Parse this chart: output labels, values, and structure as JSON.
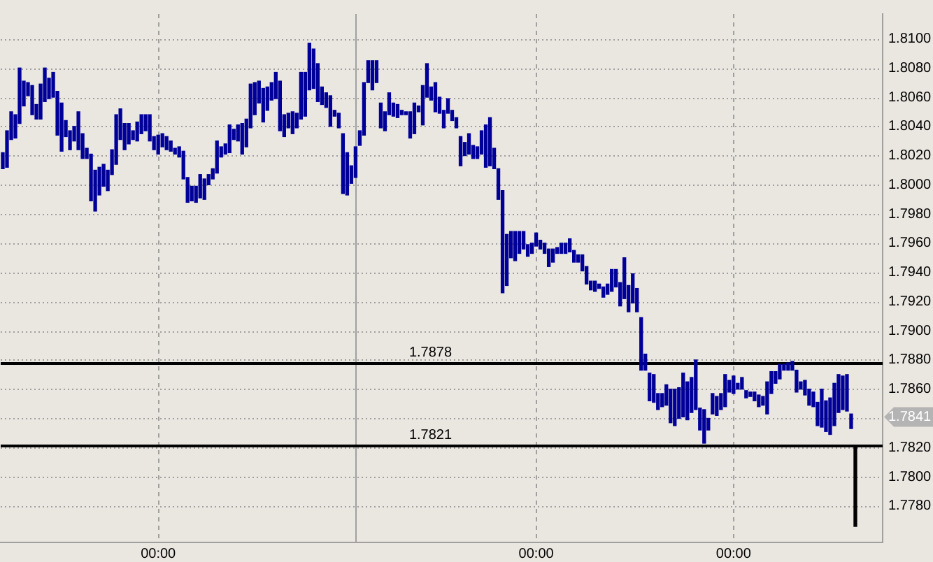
{
  "chart_data": {
    "type": "bar",
    "categories": [
      null,
      null,
      null,
      null,
      null,
      null,
      null,
      null,
      null,
      null,
      null,
      null,
      null,
      null,
      null,
      null,
      null,
      null,
      null,
      null,
      null,
      null,
      null,
      null,
      null,
      null,
      null,
      null,
      null,
      null,
      null,
      null,
      null,
      null,
      null,
      null,
      null,
      "00:00",
      null,
      null,
      null,
      null,
      null,
      null,
      null,
      null,
      null,
      null,
      null,
      null,
      null,
      null,
      null,
      null,
      null,
      null,
      null,
      null,
      null,
      null,
      null,
      null,
      null,
      null,
      null,
      null,
      null,
      null,
      null,
      null,
      null,
      null,
      null,
      null,
      null,
      null,
      null,
      null,
      null,
      null,
      null,
      null,
      null,
      null,
      null,
      null,
      null,
      null,
      null,
      null,
      null,
      null,
      null,
      null,
      null,
      null,
      null,
      null,
      null,
      null,
      null,
      null,
      null,
      null,
      null,
      null,
      null,
      null,
      null,
      null,
      null,
      null,
      null,
      null,
      null,
      null,
      null,
      null,
      null,
      null,
      null,
      null,
      null,
      null,
      null,
      null,
      null,
      "00:00",
      null,
      null,
      null,
      null,
      null,
      null,
      null,
      null,
      null,
      null,
      null,
      null,
      null,
      null,
      null,
      null,
      null,
      null,
      null,
      null,
      null,
      null,
      null,
      null,
      null,
      null,
      null,
      null,
      null,
      null,
      null,
      null,
      null,
      null,
      null,
      null,
      null,
      null,
      null,
      null,
      null,
      null,
      null,
      null,
      null,
      null,
      "00:00",
      null,
      null,
      null,
      null,
      null,
      null,
      null,
      null,
      null,
      null,
      null,
      null,
      null,
      null,
      null,
      null,
      null,
      null,
      null,
      null,
      null,
      null,
      null,
      null,
      null,
      null,
      null,
      null,
      null,
      null,
      null,
      null,
      null,
      null,
      null
    ],
    "series": [
      {
        "color": "#000099",
        "base": [
          1.8011,
          1.8012,
          1.8031,
          1.8032,
          1.8042,
          1.8054,
          1.8061,
          1.8048,
          1.8045,
          1.8045,
          1.8057,
          1.8059,
          1.806,
          1.8034,
          1.8023,
          1.8033,
          1.8024,
          1.803,
          1.8024,
          1.8018,
          1.8018,
          1.7989,
          1.7982,
          1.7993,
          1.7999,
          1.7996,
          1.8007,
          1.8014,
          1.8031,
          1.8024,
          1.8028,
          1.8031,
          1.803,
          1.8035,
          1.8037,
          1.803,
          1.8024,
          1.8021,
          1.8026,
          1.8024,
          1.8023,
          1.8021,
          1.8019,
          1.8004,
          1.7988,
          1.7989,
          1.7988,
          1.7991,
          1.799,
          1.8,
          1.8004,
          1.8008,
          1.8019,
          1.8021,
          1.8022,
          1.8031,
          1.803,
          1.8021,
          1.8026,
          1.8039,
          1.8048,
          1.8056,
          1.8043,
          1.8051,
          1.8058,
          1.8059,
          1.8037,
          1.8033,
          1.8039,
          1.8035,
          1.8039,
          1.8045,
          1.8047,
          1.8065,
          1.8066,
          1.8057,
          1.8055,
          1.8053,
          1.804,
          1.8047,
          1.8039,
          1.7994,
          1.7993,
          1.8001,
          1.8005,
          1.8027,
          1.8034,
          1.807,
          1.8065,
          1.807,
          1.8039,
          1.8037,
          1.8048,
          1.8047,
          1.8046,
          1.8048,
          1.8048,
          1.8032,
          1.8035,
          1.805,
          1.8041,
          1.806,
          1.8058,
          1.805,
          1.8049,
          1.8039,
          1.8049,
          1.8044,
          1.8039,
          1.8013,
          1.802,
          1.8021,
          1.8018,
          1.8018,
          1.8021,
          1.8012,
          1.8013,
          1.8011,
          1.799,
          1.7926,
          1.7931,
          1.795,
          1.7948,
          1.7953,
          1.7956,
          1.7951,
          1.7953,
          1.7958,
          1.7956,
          1.7953,
          1.7944,
          1.7947,
          1.7953,
          1.7953,
          1.7953,
          1.7954,
          1.7947,
          1.7947,
          1.7941,
          1.7932,
          1.7928,
          1.7927,
          1.7929,
          1.7923,
          1.7925,
          1.7927,
          1.793,
          1.7917,
          1.7922,
          1.7913,
          1.7919,
          1.7913,
          1.7873,
          1.7873,
          1.7852,
          1.7851,
          1.7846,
          1.7848,
          1.7849,
          1.7837,
          1.7835,
          1.784,
          1.7841,
          1.7839,
          1.7844,
          1.7846,
          1.7832,
          1.7823,
          1.7832,
          1.7843,
          1.7842,
          1.7846,
          1.7848,
          1.7858,
          1.7857,
          1.786,
          1.786,
          1.7854,
          1.7855,
          1.7852,
          1.7848,
          1.7849,
          1.7843,
          1.7857,
          1.7864,
          1.7867,
          1.7873,
          1.7873,
          1.7873,
          1.7858,
          1.786,
          1.7856,
          1.7849,
          1.7848,
          1.7835,
          1.7834,
          1.7831,
          1.7829,
          1.7835,
          1.7844,
          1.7846,
          1.7845,
          1.7833,
          null,
          null,
          null,
          null,
          null,
          null,
          null
        ],
        "values": [
          0.0011,
          0.0025,
          0.0019,
          0.0016,
          0.0038,
          0.0017,
          0.0009,
          0.002,
          0.001,
          0.0024,
          0.0023,
          0.0014,
          0.0017,
          0.003,
          0.0033,
          0.0011,
          0.0013,
          0.001,
          0.0026,
          0.0017,
          0.0007,
          0.0032,
          0.0028,
          0.0019,
          0.0015,
          0.0014,
          0.0017,
          0.0034,
          0.0021,
          0.0018,
          0.0014,
          0.0006,
          0.0013,
          0.0013,
          0.0011,
          0.0018,
          0.0009,
          0.0013,
          0.0009,
          0.0009,
          0.0007,
          0.0004,
          0.0007,
          0.0019,
          0.0017,
          0.001,
          0.0011,
          0.0016,
          0.0014,
          0.0007,
          0.0007,
          0.0022,
          0.0007,
          0.0007,
          0.0019,
          0.0007,
          0.0011,
          0.0021,
          0.0019,
          0.003,
          0.0022,
          0.0015,
          0.0023,
          0.0016,
          0.0012,
          0.0018,
          0.0034,
          0.0015,
          0.001,
          0.0015,
          0.001,
          0.0032,
          0.003,
          0.0032,
          0.0027,
          0.0026,
          0.0012,
          0.001,
          0.0021,
          0.0004,
          0.001,
          0.0041,
          0.0029,
          0.0012,
          0.0021,
          0.001,
          0.0036,
          0.0015,
          0.002,
          0.0015,
          0.0017,
          0.0013,
          0.0015,
          0.0009,
          0.0009,
          0.0003,
          0.0002,
          0.0018,
          0.0021,
          0.0004,
          0.0027,
          0.0023,
          0.0009,
          0.002,
          0.0011,
          0.0012,
          0.001,
          0.0007,
          0.0007,
          0.002,
          0.0009,
          0.0014,
          0.0009,
          0.0008,
          0.0016,
          0.0029,
          0.0033,
          0.0014,
          0.0021,
          0.007,
          0.0035,
          0.0018,
          0.002,
          0.0015,
          0.0012,
          0.0008,
          0.0007,
          0.0009,
          0.0006,
          0.0007,
          0.0012,
          0.0009,
          0.0004,
          0.0007,
          0.0007,
          0.0009,
          0.0008,
          0.0005,
          0.0011,
          0.0012,
          0.0006,
          0.0007,
          0.0003,
          0.0007,
          0.0007,
          0.0015,
          0.0012,
          0.0016,
          0.0028,
          0.0018,
          0.002,
          0.0016,
          0.0036,
          0.0011,
          0.0019,
          0.0019,
          0.0011,
          0.0009,
          0.0014,
          0.0023,
          0.0025,
          0.0021,
          0.003,
          0.0026,
          0.0024,
          0.0034,
          0.0015,
          0.0023,
          0.0008,
          0.0014,
          0.0013,
          0.0011,
          0.0022,
          0.0008,
          0.0012,
          0.0004,
          0.0008,
          0.0005,
          0.0003,
          0.0006,
          0.0008,
          0.0006,
          0.0022,
          0.0015,
          0.0008,
          0.001,
          0.0004,
          0.0005,
          0.0006,
          0.0015,
          0.0005,
          0.001,
          0.0011,
          0.001,
          0.0016,
          0.0026,
          0.0021,
          0.0025,
          0.0029,
          0.0026,
          0.0023,
          0.0025,
          0.001,
          null,
          null,
          null,
          null,
          null,
          null,
          null
        ]
      },
      {
        "color": "#000000",
        "base": [
          null,
          null,
          null,
          null,
          null,
          null,
          null,
          null,
          null,
          null,
          null,
          null,
          null,
          null,
          null,
          null,
          null,
          null,
          null,
          null,
          null,
          null,
          null,
          null,
          null,
          null,
          null,
          null,
          null,
          null,
          null,
          null,
          null,
          null,
          null,
          null,
          null,
          null,
          null,
          null,
          null,
          null,
          null,
          null,
          null,
          null,
          null,
          null,
          null,
          null,
          null,
          null,
          null,
          null,
          null,
          null,
          null,
          null,
          null,
          null,
          null,
          null,
          null,
          null,
          null,
          null,
          null,
          null,
          null,
          null,
          null,
          null,
          null,
          null,
          null,
          null,
          null,
          null,
          null,
          null,
          null,
          null,
          null,
          null,
          null,
          null,
          null,
          null,
          null,
          null,
          null,
          null,
          null,
          null,
          null,
          null,
          null,
          null,
          null,
          null,
          null,
          null,
          null,
          null,
          null,
          null,
          null,
          null,
          null,
          null,
          null,
          null,
          null,
          null,
          null,
          null,
          null,
          null,
          null,
          null,
          null,
          null,
          null,
          null,
          null,
          null,
          null,
          null,
          null,
          null,
          null,
          null,
          null,
          null,
          null,
          null,
          null,
          null,
          null,
          null,
          null,
          null,
          null,
          null,
          null,
          null,
          null,
          null,
          null,
          null,
          null,
          null,
          null,
          null,
          null,
          null,
          null,
          null,
          null,
          null,
          null,
          null,
          null,
          null,
          null,
          null,
          null,
          null,
          null,
          null,
          null,
          null,
          null,
          null,
          null,
          null,
          null,
          null,
          null,
          null,
          null,
          null,
          null,
          null,
          null,
          null,
          null,
          null,
          null,
          null,
          null,
          null,
          null,
          null,
          null,
          null,
          null,
          null,
          null,
          null,
          null,
          null,
          null,
          1.7766,
          null,
          null,
          null,
          null,
          null,
          null
        ],
        "values": [
          null,
          null,
          null,
          null,
          null,
          null,
          null,
          null,
          null,
          null,
          null,
          null,
          null,
          null,
          null,
          null,
          null,
          null,
          null,
          null,
          null,
          null,
          null,
          null,
          null,
          null,
          null,
          null,
          null,
          null,
          null,
          null,
          null,
          null,
          null,
          null,
          null,
          null,
          null,
          null,
          null,
          null,
          null,
          null,
          null,
          null,
          null,
          null,
          null,
          null,
          null,
          null,
          null,
          null,
          null,
          null,
          null,
          null,
          null,
          null,
          null,
          null,
          null,
          null,
          null,
          null,
          null,
          null,
          null,
          null,
          null,
          null,
          null,
          null,
          null,
          null,
          null,
          null,
          null,
          null,
          null,
          null,
          null,
          null,
          null,
          null,
          null,
          null,
          null,
          null,
          null,
          null,
          null,
          null,
          null,
          null,
          null,
          null,
          null,
          null,
          null,
          null,
          null,
          null,
          null,
          null,
          null,
          null,
          null,
          null,
          null,
          null,
          null,
          null,
          null,
          null,
          null,
          null,
          null,
          null,
          null,
          null,
          null,
          null,
          null,
          null,
          null,
          null,
          null,
          null,
          null,
          null,
          null,
          null,
          null,
          null,
          null,
          null,
          null,
          null,
          null,
          null,
          null,
          null,
          null,
          null,
          null,
          null,
          null,
          null,
          null,
          null,
          null,
          null,
          null,
          null,
          null,
          null,
          null,
          null,
          null,
          null,
          null,
          null,
          null,
          null,
          null,
          null,
          null,
          null,
          null,
          null,
          null,
          null,
          null,
          null,
          null,
          null,
          null,
          null,
          null,
          null,
          null,
          null,
          null,
          null,
          null,
          null,
          null,
          null,
          null,
          null,
          null,
          null,
          null,
          null,
          null,
          null,
          null,
          null,
          null,
          null,
          null,
          0.0055,
          null,
          null,
          null,
          null,
          null,
          null
        ]
      }
    ],
    "ylim": [
      1.7755,
      1.8117
    ],
    "yticks": [
      {
        "value": 1.778,
        "label": "1.7780"
      },
      {
        "value": 1.78,
        "label": "1.7800"
      },
      {
        "value": 1.782,
        "label": "1.7820"
      },
      {
        "value": 1.784,
        "label": null
      },
      {
        "value": 1.786,
        "label": "1.7860"
      },
      {
        "value": 1.788,
        "label": "1.7880"
      },
      {
        "value": 1.79,
        "label": "1.7900"
      },
      {
        "value": 1.792,
        "label": "1.7920"
      },
      {
        "value": 1.794,
        "label": "1.7940"
      },
      {
        "value": 1.796,
        "label": "1.7960"
      },
      {
        "value": 1.798,
        "label": "1.7980"
      },
      {
        "value": 1.8,
        "label": "1.8000"
      },
      {
        "value": 1.802,
        "label": "1.8020"
      },
      {
        "value": 1.804,
        "label": "1.8040"
      },
      {
        "value": 1.806,
        "label": "1.8060"
      },
      {
        "value": 1.808,
        "label": "1.8080"
      },
      {
        "value": 1.81,
        "label": "1.8100"
      }
    ],
    "grid": true,
    "ref_lines": [
      {
        "axis": "y",
        "value": 1.7878,
        "label": "1.7878",
        "color": "#000000"
      },
      {
        "axis": "y",
        "value": 1.7821,
        "label": "1.7821",
        "color": "#000000"
      }
    ],
    "annotations": [
      {
        "text": "1.7841",
        "y": 1.7841
      }
    ]
  }
}
